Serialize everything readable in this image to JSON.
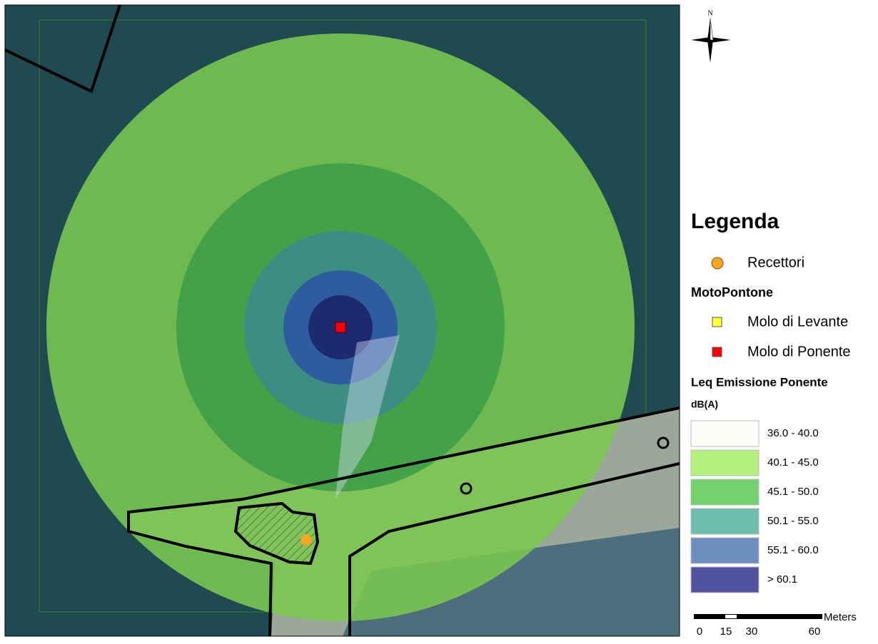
{
  "north_arrow": {
    "label": "N"
  },
  "legend": {
    "title": "Legenda",
    "receptors": {
      "label": "Recettori",
      "color": "#f5a623"
    },
    "group_title": "MotoPontone",
    "sources": [
      {
        "label": "Molo di Levante",
        "color": "#ffff33"
      },
      {
        "label": "Molo di Ponente",
        "color": "#ff0000"
      }
    ],
    "raster_title": "Leq Emissione Ponente",
    "raster_unit": "dB(A)",
    "classes": [
      {
        "label": "36.0 - 40.0",
        "color": "#fbfdf8"
      },
      {
        "label": "40.1 - 45.0",
        "color": "#b3f07c"
      },
      {
        "label": "45.1 - 50.0",
        "color": "#72d26c"
      },
      {
        "label": "50.1 - 55.0",
        "color": "#6cbfae"
      },
      {
        "label": "55.1 - 60.0",
        "color": "#6e8ec0"
      },
      {
        "label": "> 60.1",
        "color": "#5252a2"
      }
    ]
  },
  "scale_bar": {
    "unit": "Meters",
    "labels": [
      "0",
      "15",
      "30",
      "60"
    ]
  }
}
